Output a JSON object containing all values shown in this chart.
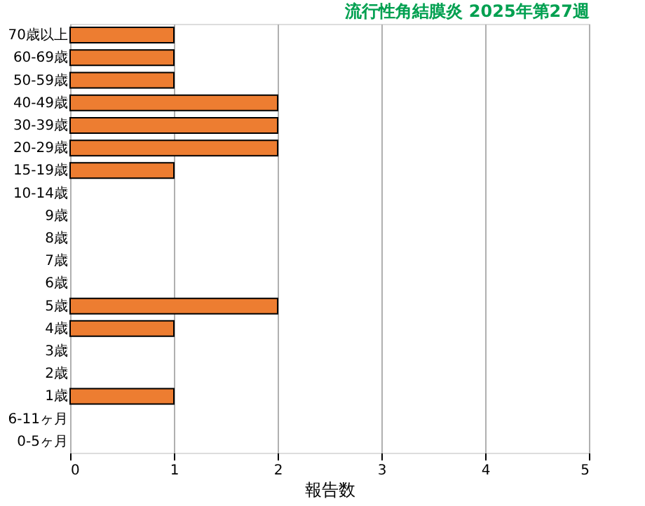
{
  "chart_data": {
    "type": "bar",
    "orientation": "horizontal",
    "title": "流行性角結膜炎 2025年第27週",
    "xlabel": "報告数",
    "categories": [
      "70歳以上",
      "60-69歳",
      "50-59歳",
      "40-49歳",
      "30-39歳",
      "20-29歳",
      "15-19歳",
      "10-14歳",
      "9歳",
      "8歳",
      "7歳",
      "6歳",
      "5歳",
      "4歳",
      "3歳",
      "2歳",
      "1歳",
      "6-11ヶ月",
      "0-5ヶ月"
    ],
    "values": [
      1,
      1,
      1,
      2,
      2,
      2,
      1,
      0,
      0,
      0,
      0,
      0,
      2,
      1,
      0,
      0,
      1,
      0,
      0
    ],
    "color": "#ed7d31",
    "xlim": [
      0,
      5
    ],
    "xticks": [
      0,
      1,
      2,
      3,
      4,
      5
    ],
    "grid": "x"
  }
}
